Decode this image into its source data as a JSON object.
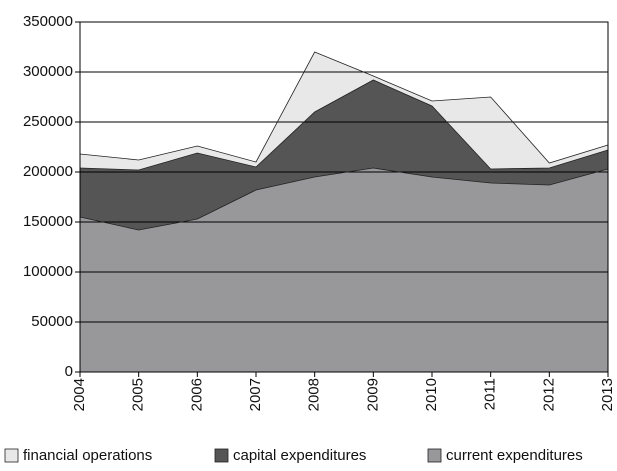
{
  "chart_data": {
    "type": "stacked_area",
    "categories": [
      "2004",
      "2005",
      "2006",
      "2007",
      "2008",
      "2009",
      "2010",
      "2011",
      "2012",
      "2013"
    ],
    "series": [
      {
        "name": "financial operations",
        "color": "#e8e8e8",
        "values": [
          14000,
          10000,
          7000,
          5000,
          60000,
          4000,
          5000,
          72000,
          5000,
          5000
        ]
      },
      {
        "name": "capital expenditures",
        "color": "#555555",
        "values": [
          49000,
          60000,
          66000,
          23000,
          65000,
          88000,
          71000,
          14000,
          17000,
          19000
        ]
      },
      {
        "name": "current expenditures",
        "color": "#98989b",
        "values": [
          155000,
          142000,
          153000,
          182000,
          195000,
          204000,
          195000,
          189000,
          187000,
          203000
        ]
      }
    ],
    "ylim": [
      0,
      350000
    ],
    "yticks": [
      0,
      50000,
      100000,
      150000,
      200000,
      250000,
      300000,
      350000
    ],
    "grid": true,
    "legend": "bottom"
  }
}
